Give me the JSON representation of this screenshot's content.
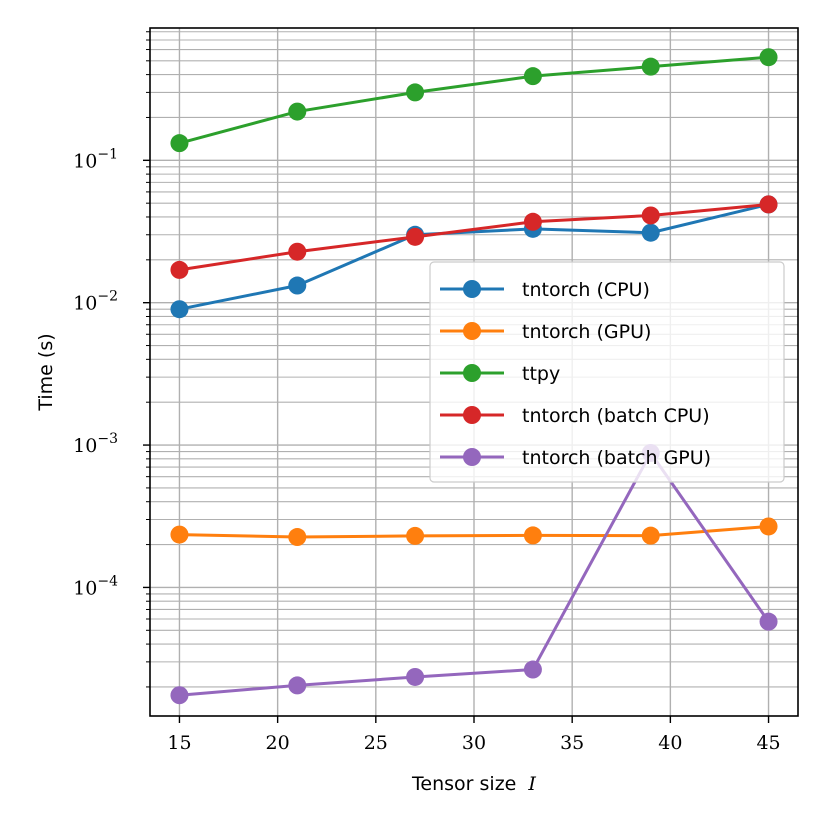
{
  "chart_data": {
    "type": "line",
    "xlabel": "Tensor size",
    "xlabel_var": "I",
    "ylabel": "Time (s)",
    "yscale": "log",
    "xlim": [
      13.5,
      46.5
    ],
    "ylim": [
      1.25e-05,
      0.85
    ],
    "grid": true,
    "x": [
      15,
      21,
      27,
      33,
      39,
      45
    ],
    "x_ticks": [
      {
        "value": 15,
        "label": "15"
      },
      {
        "value": 20,
        "label": "20"
      },
      {
        "value": 25,
        "label": "25"
      },
      {
        "value": 30,
        "label": "30"
      },
      {
        "value": 35,
        "label": "35"
      },
      {
        "value": 40,
        "label": "40"
      },
      {
        "value": 45,
        "label": "45"
      }
    ],
    "y_ticks": [
      {
        "value": 0.1,
        "base": "10",
        "exp": "−1"
      },
      {
        "value": 0.01,
        "base": "10",
        "exp": "−2"
      },
      {
        "value": 0.001,
        "base": "10",
        "exp": "−3"
      },
      {
        "value": 0.0001,
        "base": "10",
        "exp": "−4"
      }
    ],
    "legend_position": "center-right",
    "series": [
      {
        "name": "tntorch (CPU)",
        "color": "#1f77b4",
        "values": [
          0.009,
          0.0132,
          0.03,
          0.033,
          0.031,
          0.049
        ]
      },
      {
        "name": "tntorch (GPU)",
        "color": "#ff7f0e",
        "values": [
          0.000235,
          0.000226,
          0.00023,
          0.000232,
          0.000231,
          0.000268
        ]
      },
      {
        "name": "ttpy",
        "color": "#2ca02c",
        "values": [
          0.132,
          0.22,
          0.3,
          0.39,
          0.455,
          0.53
        ]
      },
      {
        "name": "tntorch (batch CPU)",
        "color": "#d62728",
        "values": [
          0.017,
          0.0228,
          0.029,
          0.037,
          0.041,
          0.049
        ]
      },
      {
        "name": "tntorch (batch GPU)",
        "color": "#9467bd",
        "values": [
          1.75e-05,
          2.05e-05,
          2.35e-05,
          2.65e-05,
          0.00088,
          5.75e-05
        ]
      }
    ]
  }
}
